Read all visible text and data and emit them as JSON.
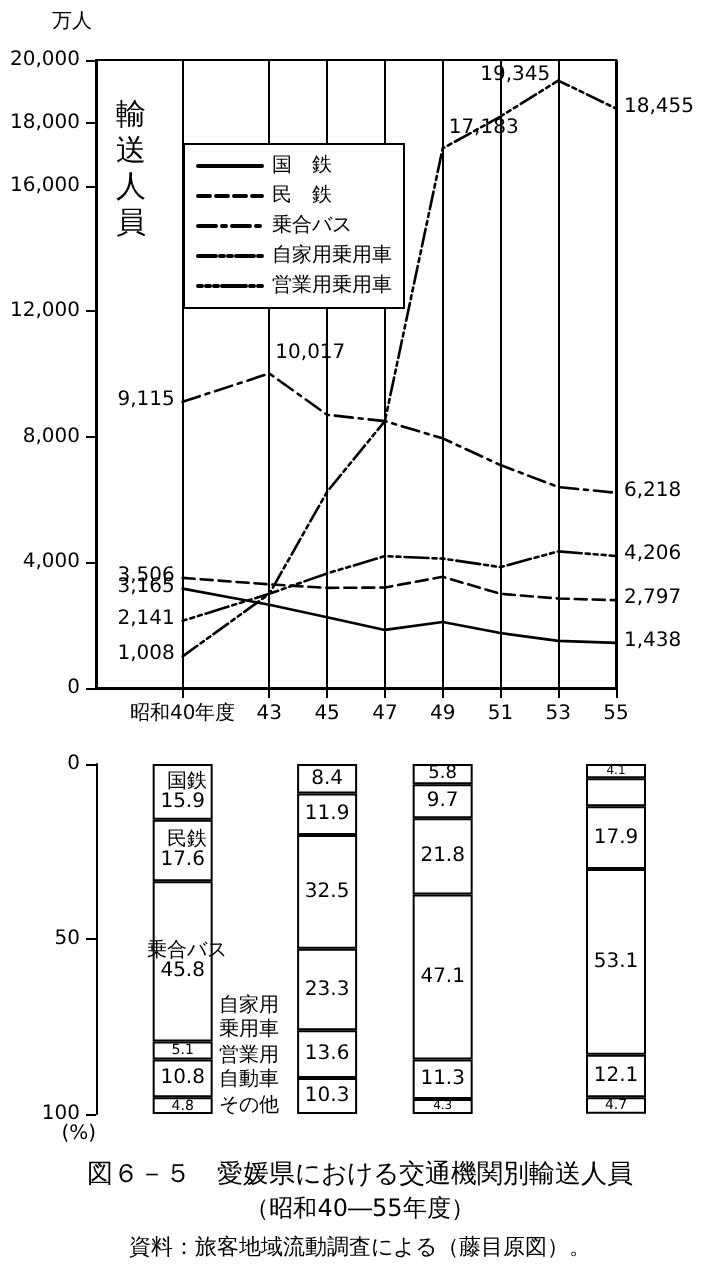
{
  "chart_data": [
    {
      "type": "line",
      "ylabel": "輸送人員",
      "annotations": [
        "万人"
      ],
      "x": [
        40,
        43,
        45,
        47,
        49,
        51,
        53,
        55
      ],
      "xlim": [
        37,
        55
      ],
      "xticks": [
        {
          "value": 40,
          "label": "昭和40年度"
        },
        43,
        45,
        47,
        49,
        51,
        53,
        55
      ],
      "ylim": [
        0,
        20000
      ],
      "yticks": [
        0,
        {
          "value": 4000,
          "label": "4,000"
        },
        {
          "value": 8000,
          "label": "8,000"
        },
        {
          "value": 12000,
          "label": "12,000"
        },
        {
          "value": 16000,
          "label": "16,000"
        },
        {
          "value": 18000,
          "label": "18,000"
        },
        {
          "value": 20000,
          "label": "20,000"
        }
      ],
      "grid": "x",
      "legend": "top left",
      "marker": "none",
      "series": [
        {
          "name": "国　鉄",
          "color": "#000000",
          "line_style": "solid",
          "values": [
            3165,
            2650,
            2250,
            1850,
            2100,
            1750,
            1500,
            1438
          ],
          "value_labels": [
            "3,165",
            null,
            null,
            null,
            null,
            null,
            null,
            "1,438"
          ]
        },
        {
          "name": "民　鉄",
          "color": "#000000",
          "line_style": "dashed",
          "values": [
            3506,
            3300,
            3190,
            3200,
            3540,
            3000,
            2850,
            2797
          ],
          "value_labels": [
            "3,506",
            null,
            null,
            null,
            null,
            null,
            null,
            "2,797"
          ]
        },
        {
          "name": "乗合バス",
          "color": "#000000",
          "line_style": "dashdot",
          "values": [
            9115,
            10017,
            8700,
            8500,
            7950,
            7100,
            6400,
            6218
          ],
          "value_labels": [
            "9,115",
            "10,017",
            null,
            null,
            null,
            null,
            null,
            "6,218"
          ]
        },
        {
          "name": "自家用乗用車",
          "color": "#000000",
          "line_style": "dashdotdot",
          "values": [
            1008,
            3000,
            6250,
            8500,
            17183,
            18200,
            19345,
            18455
          ],
          "value_labels": [
            "1,008",
            null,
            null,
            null,
            "17,183",
            null,
            "19,345",
            "18,455"
          ]
        },
        {
          "name": "営業用乗用車",
          "color": "#000000",
          "line_style": "dotdotdash",
          "values": [
            2141,
            3000,
            3650,
            4200,
            4120,
            3850,
            4350,
            4206
          ],
          "value_labels": [
            "2,141",
            null,
            null,
            null,
            null,
            null,
            null,
            "4,206"
          ]
        }
      ]
    },
    {
      "type": "bar",
      "stacked": true,
      "title": "図６－５　愛媛県における交通機関別輸送人員",
      "subtitle": "（昭和40―55年度）",
      "annotations": [
        "資料：旅客地域流動調査による（藤目原図）。"
      ],
      "ylabel": "(%)",
      "x": [
        40,
        45,
        49,
        55
      ],
      "xlim": [
        37,
        55
      ],
      "tick_labels": "y",
      "ylim": [
        100,
        0
      ],
      "yticks": [
        0,
        50,
        100
      ],
      "series": [
        {
          "name": "国鉄",
          "color": "#ffffff",
          "values": [
            15.9,
            8.4,
            5.8,
            4.1
          ],
          "value_labels": [
            "15.9",
            "8.4",
            "5.8",
            "4.1"
          ]
        },
        {
          "name": "民鉄",
          "color": "#ffffff",
          "values": [
            17.6,
            11.9,
            9.7,
            8.0
          ],
          "value_labels": [
            "17.6",
            "11.9",
            "9.7",
            null
          ]
        },
        {
          "name": "乗合バス",
          "color": "#ffffff",
          "values": [
            45.8,
            32.5,
            21.8,
            17.9
          ],
          "value_labels": [
            "45.8",
            "32.5",
            "21.8",
            "17.9"
          ]
        },
        {
          "name": "自家用乗用車",
          "color": "#ffffff",
          "values": [
            5.1,
            23.3,
            47.1,
            53.1
          ],
          "value_labels": [
            "5.1",
            "23.3",
            "47.1",
            "53.1"
          ]
        },
        {
          "name": "営業用自動車",
          "color": "#ffffff",
          "values": [
            10.8,
            13.6,
            11.3,
            12.1
          ],
          "value_labels": [
            "10.8",
            "13.6",
            "11.3",
            "12.1"
          ]
        },
        {
          "name": "その他",
          "color": "#ffffff",
          "values": [
            4.8,
            10.3,
            4.3,
            4.7
          ],
          "value_labels": [
            "4.8",
            "10.3",
            "4.3",
            "4.7"
          ]
        }
      ]
    }
  ]
}
